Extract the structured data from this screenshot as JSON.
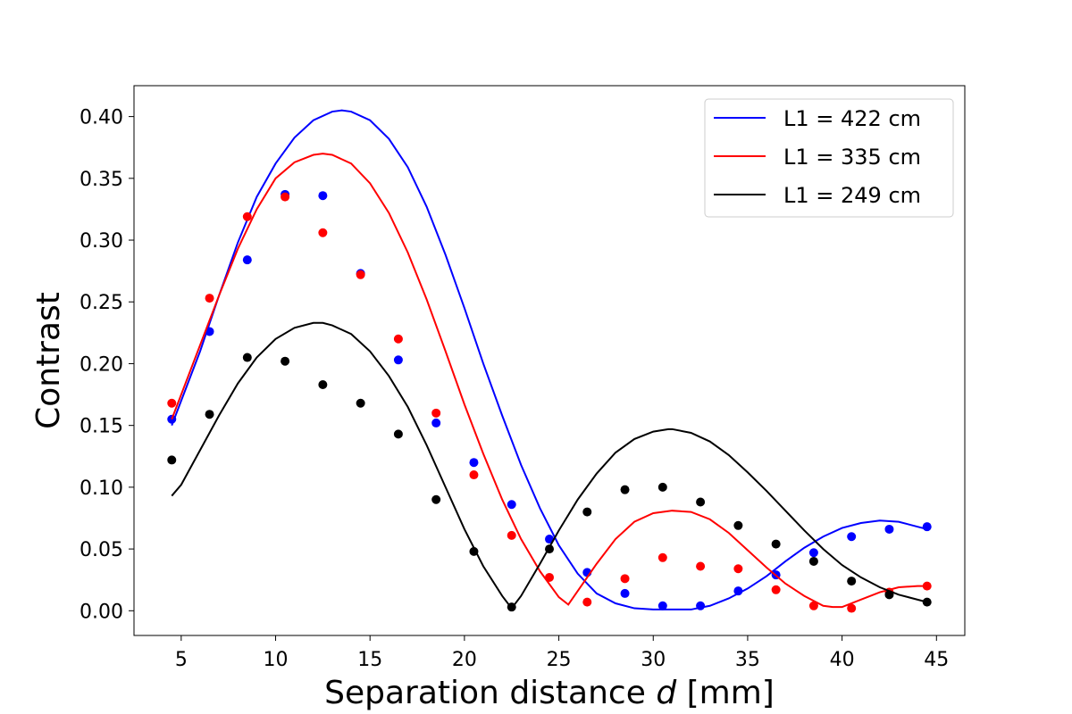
{
  "chart_data": {
    "type": "scatter",
    "xlabel_prefix": "Separation distance ",
    "xlabel_var": "d",
    "xlabel_suffix": " [mm]",
    "ylabel": "Contrast",
    "xlim": [
      2.5,
      46.5
    ],
    "ylim": [
      -0.02,
      0.425
    ],
    "xticks": [
      5,
      10,
      15,
      20,
      25,
      30,
      35,
      40,
      45
    ],
    "xtick_labels": [
      "5",
      "10",
      "15",
      "20",
      "25",
      "30",
      "35",
      "40",
      "45"
    ],
    "yticks": [
      0.0,
      0.05,
      0.1,
      0.15,
      0.2,
      0.25,
      0.3,
      0.35,
      0.4
    ],
    "ytick_labels": [
      "0.00",
      "0.05",
      "0.10",
      "0.15",
      "0.20",
      "0.25",
      "0.30",
      "0.35",
      "0.40"
    ],
    "grid": false,
    "legend_position": "top-right",
    "x": [
      4.5,
      6.5,
      8.5,
      10.5,
      12.5,
      14.5,
      16.5,
      18.5,
      20.5,
      22.5,
      24.5,
      26.5,
      28.5,
      30.5,
      32.5,
      34.5,
      36.5,
      38.5,
      40.5,
      42.5,
      44.5
    ],
    "series": [
      {
        "name": "L1 = 422 cm",
        "color": "#0000ff",
        "points": [
          0.155,
          0.226,
          0.284,
          0.337,
          0.336,
          0.273,
          0.203,
          0.152,
          0.12,
          0.086,
          0.058,
          0.031,
          0.014,
          0.004,
          0.004,
          0.016,
          0.029,
          0.047,
          0.06,
          0.066,
          0.068
        ],
        "curve": [
          [
            4.5,
            0.15
          ],
          [
            5,
            0.17
          ],
          [
            6,
            0.21
          ],
          [
            7,
            0.255
          ],
          [
            8,
            0.298
          ],
          [
            9,
            0.335
          ],
          [
            10,
            0.362
          ],
          [
            11,
            0.383
          ],
          [
            12,
            0.397
          ],
          [
            13,
            0.404
          ],
          [
            13.5,
            0.405
          ],
          [
            14,
            0.404
          ],
          [
            15,
            0.397
          ],
          [
            16,
            0.382
          ],
          [
            17,
            0.359
          ],
          [
            18,
            0.327
          ],
          [
            19,
            0.288
          ],
          [
            20,
            0.245
          ],
          [
            21,
            0.2
          ],
          [
            22,
            0.158
          ],
          [
            23,
            0.118
          ],
          [
            24,
            0.083
          ],
          [
            25,
            0.053
          ],
          [
            26,
            0.03
          ],
          [
            27,
            0.014
          ],
          [
            28,
            0.006
          ],
          [
            29,
            0.002
          ],
          [
            30,
            0.001
          ],
          [
            31,
            0.001
          ],
          [
            32,
            0.001
          ],
          [
            33,
            0.004
          ],
          [
            34,
            0.01
          ],
          [
            35,
            0.018
          ],
          [
            36,
            0.028
          ],
          [
            37,
            0.04
          ],
          [
            38,
            0.051
          ],
          [
            39,
            0.06
          ],
          [
            40,
            0.067
          ],
          [
            41,
            0.071
          ],
          [
            42,
            0.073
          ],
          [
            43,
            0.072
          ],
          [
            44,
            0.068
          ],
          [
            44.5,
            0.066
          ]
        ]
      },
      {
        "name": "L1 = 335 cm",
        "color": "#ff0000",
        "points": [
          0.168,
          0.253,
          0.319,
          0.335,
          0.306,
          0.272,
          0.22,
          0.16,
          0.11,
          0.061,
          0.027,
          0.007,
          0.026,
          0.043,
          0.036,
          0.034,
          0.017,
          0.004,
          0.002,
          0.015,
          0.02
        ],
        "curve": [
          [
            4.5,
            0.155
          ],
          [
            5,
            0.175
          ],
          [
            6,
            0.215
          ],
          [
            7,
            0.255
          ],
          [
            8,
            0.293
          ],
          [
            9,
            0.325
          ],
          [
            10,
            0.35
          ],
          [
            11,
            0.363
          ],
          [
            12,
            0.369
          ],
          [
            12.5,
            0.37
          ],
          [
            13,
            0.369
          ],
          [
            14,
            0.362
          ],
          [
            15,
            0.346
          ],
          [
            16,
            0.322
          ],
          [
            17,
            0.29
          ],
          [
            18,
            0.252
          ],
          [
            19,
            0.21
          ],
          [
            20,
            0.167
          ],
          [
            21,
            0.127
          ],
          [
            22,
            0.09
          ],
          [
            23,
            0.058
          ],
          [
            24,
            0.032
          ],
          [
            25,
            0.011
          ],
          [
            25.5,
            0.005
          ],
          [
            26,
            0.016
          ],
          [
            27,
            0.038
          ],
          [
            28,
            0.058
          ],
          [
            29,
            0.072
          ],
          [
            30,
            0.079
          ],
          [
            31,
            0.081
          ],
          [
            32,
            0.08
          ],
          [
            33,
            0.074
          ],
          [
            34,
            0.063
          ],
          [
            35,
            0.049
          ],
          [
            36,
            0.035
          ],
          [
            37,
            0.022
          ],
          [
            38,
            0.012
          ],
          [
            39,
            0.004
          ],
          [
            39.5,
            0.003
          ],
          [
            40,
            0.003
          ],
          [
            41,
            0.009
          ],
          [
            42,
            0.015
          ],
          [
            43,
            0.019
          ],
          [
            44,
            0.02
          ],
          [
            44.5,
            0.02
          ]
        ]
      },
      {
        "name": "L1 = 249 cm",
        "color": "#000000",
        "points": [
          0.122,
          0.159,
          0.205,
          0.202,
          0.183,
          0.168,
          0.143,
          0.09,
          0.048,
          0.003,
          0.05,
          0.08,
          0.098,
          0.1,
          0.088,
          0.069,
          0.054,
          0.04,
          0.024,
          0.013,
          0.007
        ],
        "curve": [
          [
            4.5,
            0.093
          ],
          [
            5,
            0.102
          ],
          [
            6,
            0.13
          ],
          [
            7,
            0.158
          ],
          [
            8,
            0.184
          ],
          [
            9,
            0.205
          ],
          [
            10,
            0.22
          ],
          [
            11,
            0.229
          ],
          [
            12,
            0.233
          ],
          [
            12.5,
            0.233
          ],
          [
            13,
            0.231
          ],
          [
            14,
            0.224
          ],
          [
            15,
            0.21
          ],
          [
            16,
            0.19
          ],
          [
            17,
            0.165
          ],
          [
            18,
            0.134
          ],
          [
            19,
            0.1
          ],
          [
            20,
            0.066
          ],
          [
            21,
            0.036
          ],
          [
            22,
            0.012
          ],
          [
            22.5,
            0.002
          ],
          [
            23,
            0.012
          ],
          [
            24,
            0.038
          ],
          [
            25,
            0.065
          ],
          [
            26,
            0.09
          ],
          [
            27,
            0.111
          ],
          [
            28,
            0.128
          ],
          [
            29,
            0.139
          ],
          [
            30,
            0.145
          ],
          [
            30.8,
            0.147
          ],
          [
            31,
            0.147
          ],
          [
            32,
            0.144
          ],
          [
            33,
            0.137
          ],
          [
            34,
            0.126
          ],
          [
            35,
            0.112
          ],
          [
            36,
            0.097
          ],
          [
            37,
            0.081
          ],
          [
            38,
            0.065
          ],
          [
            39,
            0.05
          ],
          [
            40,
            0.037
          ],
          [
            41,
            0.027
          ],
          [
            42,
            0.019
          ],
          [
            43,
            0.013
          ],
          [
            44,
            0.009
          ],
          [
            44.5,
            0.007
          ]
        ]
      }
    ]
  }
}
